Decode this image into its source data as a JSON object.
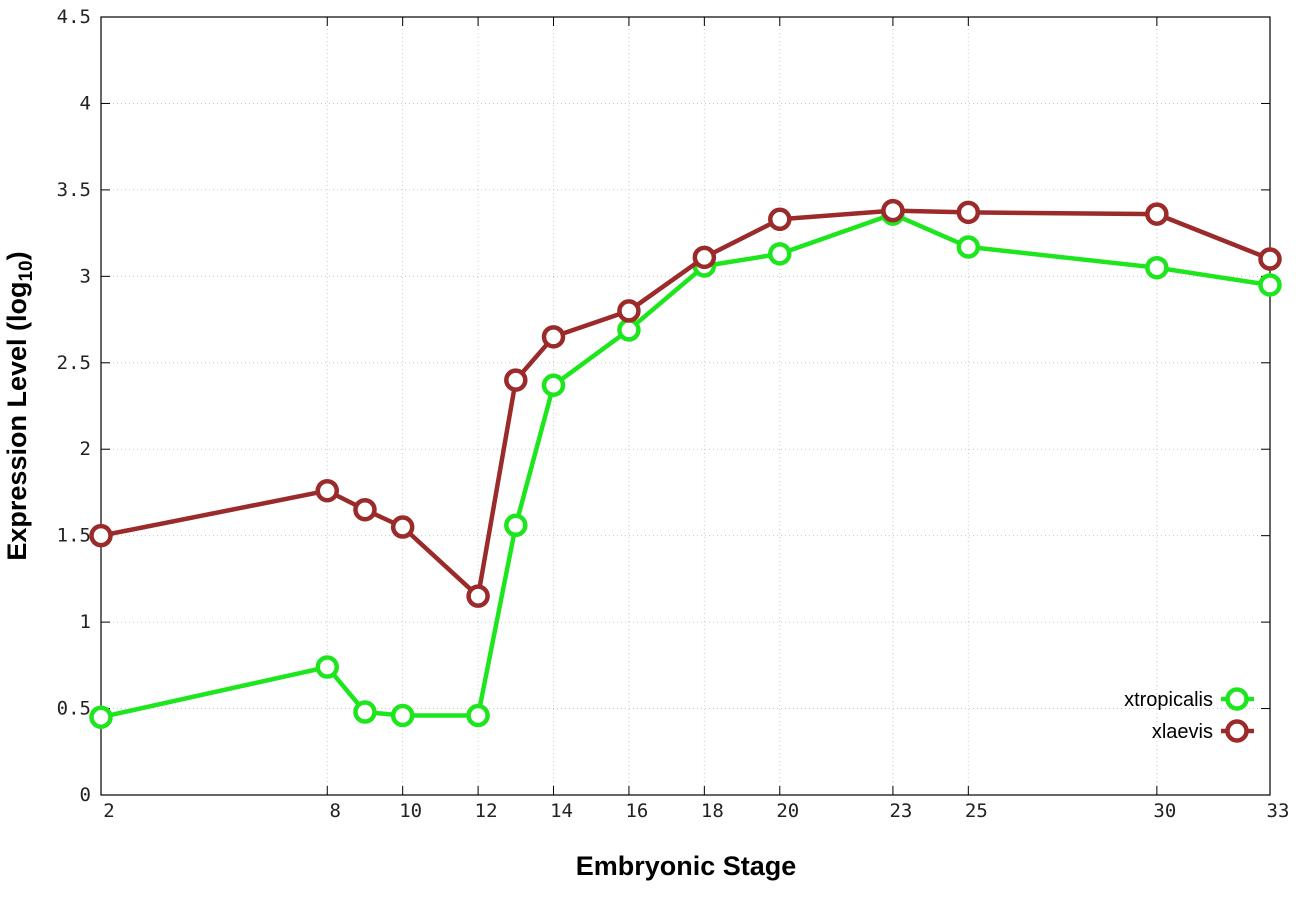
{
  "chart_data": {
    "type": "line",
    "xlabel": "Embryonic Stage",
    "ylabel": "Expression Level (log",
    "ylabel_sub": "10",
    "ylabel_close": ")",
    "x_ticks": [
      "2",
      "8",
      "10",
      "12",
      "14",
      "16",
      "18",
      "20",
      "23",
      "25",
      "30",
      "33"
    ],
    "y_ticks": [
      "0",
      "0.5",
      "1",
      "1.5",
      "2",
      "2.5",
      "3",
      "3.5",
      "4",
      "4.5"
    ],
    "xlim": [
      2,
      33
    ],
    "ylim": [
      0,
      4.5
    ],
    "grid": true,
    "legend_position": "bottom-right",
    "x": [
      2,
      8,
      9,
      10,
      12,
      13,
      14,
      16,
      18,
      20,
      23,
      25,
      30,
      33
    ],
    "series": [
      {
        "name": "xtropicalis",
        "color": "#1ee61e",
        "values": [
          0.45,
          0.74,
          0.48,
          0.46,
          0.46,
          1.56,
          2.37,
          2.69,
          3.06,
          3.13,
          3.36,
          3.17,
          3.05,
          2.95
        ]
      },
      {
        "name": "xlaevis",
        "color": "#9b2a2a",
        "values": [
          1.5,
          1.76,
          1.65,
          1.55,
          1.15,
          2.4,
          2.65,
          2.8,
          3.11,
          3.33,
          3.38,
          3.37,
          3.36,
          3.1
        ]
      }
    ]
  }
}
